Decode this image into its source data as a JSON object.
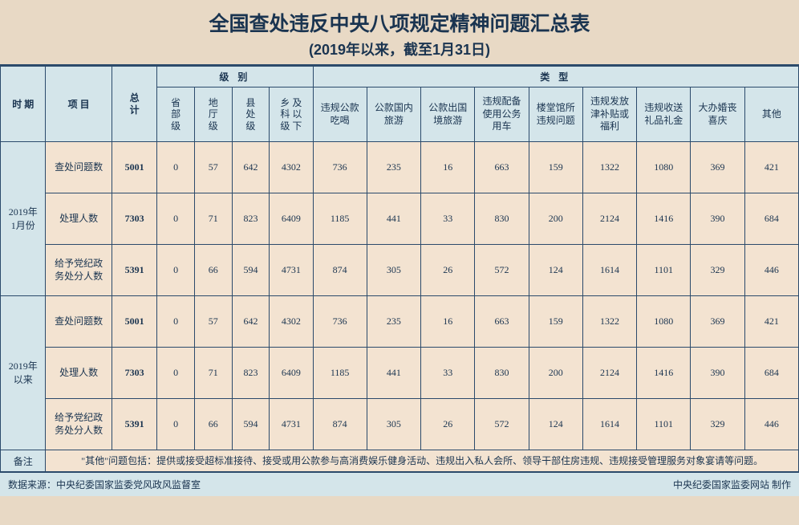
{
  "title": "全国查处违反中央八项规定精神问题汇总表",
  "subtitle": "(2019年以来，截至1月31日)",
  "header": {
    "period": "时 期",
    "item": "项 目",
    "total": "总\n计",
    "level_group": "级  别",
    "type_group": "类  型",
    "levels": [
      "省\n部\n级",
      "地\n厅\n级",
      "县\n处\n级",
      "乡 及\n科 以\n级 下"
    ],
    "types": [
      "违规公款\n吃喝",
      "公款国内\n旅游",
      "公款出国\n境旅游",
      "违规配备\n使用公务\n用车",
      "楼堂馆所\n违规问题",
      "违规发放\n津补贴或\n福利",
      "违规收送\n礼品礼金",
      "大办婚丧\n喜庆",
      "其他"
    ]
  },
  "periods": [
    {
      "label": "2019年\n1月份",
      "rows": [
        {
          "item": "查处问题数",
          "total": "5001",
          "vals": [
            "0",
            "57",
            "642",
            "4302",
            "736",
            "235",
            "16",
            "663",
            "159",
            "1322",
            "1080",
            "369",
            "421"
          ]
        },
        {
          "item": "处理人数",
          "total": "7303",
          "vals": [
            "0",
            "71",
            "823",
            "6409",
            "1185",
            "441",
            "33",
            "830",
            "200",
            "2124",
            "1416",
            "390",
            "684"
          ]
        },
        {
          "item": "给予党纪政\n务处分人数",
          "total": "5391",
          "vals": [
            "0",
            "66",
            "594",
            "4731",
            "874",
            "305",
            "26",
            "572",
            "124",
            "1614",
            "1101",
            "329",
            "446"
          ]
        }
      ]
    },
    {
      "label": "2019年\n以来",
      "rows": [
        {
          "item": "查处问题数",
          "total": "5001",
          "vals": [
            "0",
            "57",
            "642",
            "4302",
            "736",
            "235",
            "16",
            "663",
            "159",
            "1322",
            "1080",
            "369",
            "421"
          ]
        },
        {
          "item": "处理人数",
          "total": "7303",
          "vals": [
            "0",
            "71",
            "823",
            "6409",
            "1185",
            "441",
            "33",
            "830",
            "200",
            "2124",
            "1416",
            "390",
            "684"
          ]
        },
        {
          "item": "给予党纪政\n务处分人数",
          "total": "5391",
          "vals": [
            "0",
            "66",
            "594",
            "4731",
            "874",
            "305",
            "26",
            "572",
            "124",
            "1614",
            "1101",
            "329",
            "446"
          ]
        }
      ]
    }
  ],
  "note": {
    "label": "备注",
    "text": "\"其他\"问题包括：提供或接受超标准接待、接受或用公款参与高消费娱乐健身活动、违规出入私人会所、领导干部住房违规、违规接受管理服务对象宴请等问题。"
  },
  "footer": {
    "left": "数据来源：中央纪委国家监委党风政风监督室",
    "right": "中央纪委国家监委网站 制作"
  },
  "style": {
    "bg": "#e8d9c5",
    "header_bg": "#d4e5ea",
    "cell_bg": "#f3e3d1",
    "border": "#2b4a6b",
    "text": "#1a3450"
  }
}
